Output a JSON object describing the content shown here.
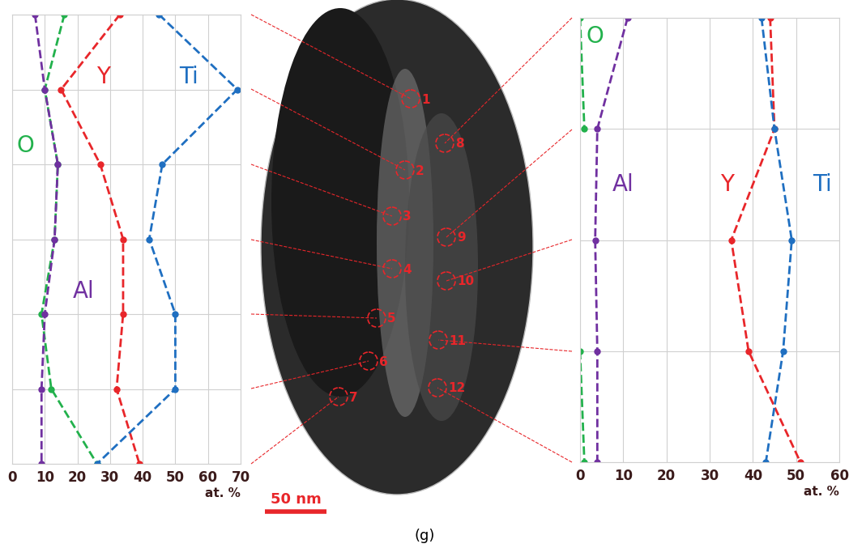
{
  "chart_data": [
    {
      "type": "line",
      "orientation": "horizontal",
      "categories": [
        "1",
        "2",
        "3",
        "4",
        "5",
        "6",
        "7"
      ],
      "x_label": "at. %",
      "xlim": [
        0,
        70
      ],
      "xticks": [
        0,
        10,
        20,
        30,
        40,
        50,
        60,
        70
      ],
      "tick_labels": "x",
      "grid": true,
      "marker": "o",
      "line_style": "dashed",
      "series": [
        {
          "name": "O",
          "color": "#22b14c",
          "values": [
            16,
            10,
            14,
            13,
            9,
            12,
            26
          ]
        },
        {
          "name": "Y",
          "color": "#e8262a",
          "values": [
            33,
            15,
            27,
            34,
            34,
            32,
            39
          ]
        },
        {
          "name": "Ti",
          "color": "#1f6fc1",
          "values": [
            45,
            69,
            46,
            42,
            50,
            50,
            26
          ]
        },
        {
          "name": "Al",
          "color": "#7030a0",
          "values": [
            7,
            10,
            14,
            13,
            10,
            9,
            9
          ]
        }
      ]
    },
    {
      "type": "line",
      "orientation": "horizontal",
      "categories": [
        "8",
        "9",
        "10",
        "11",
        "12"
      ],
      "x_label": "at. %",
      "xlim": [
        0,
        60
      ],
      "xticks": [
        0,
        10,
        20,
        30,
        40,
        50,
        60
      ],
      "tick_labels": "x",
      "grid": true,
      "marker": "o",
      "line_style": "dashed",
      "series": [
        {
          "name": "O",
          "color": "#22b14c",
          "values": [
            0,
            1,
            null,
            0,
            1
          ]
        },
        {
          "name": "Al",
          "color": "#7030a0",
          "values": [
            11,
            4,
            3.5,
            4,
            4
          ]
        },
        {
          "name": "Y",
          "color": "#e8262a",
          "values": [
            44,
            45,
            35,
            39,
            51
          ]
        },
        {
          "name": "Ti",
          "color": "#1f6fc1",
          "values": [
            42,
            45,
            49,
            47,
            43
          ]
        }
      ]
    }
  ],
  "image": {
    "scale_bar": "50 nm",
    "caption": "(g)"
  }
}
